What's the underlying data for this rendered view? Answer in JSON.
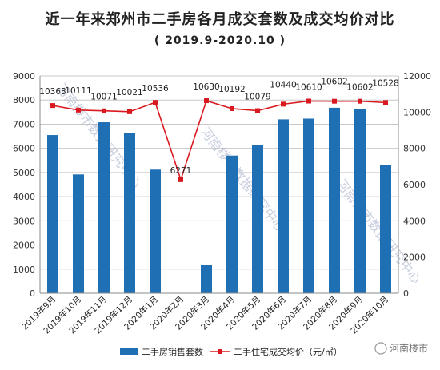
{
  "title": "近一年来郑州市二手房各月成交套数及成交均价对比",
  "subtitle": "( 2019.9-2020.10 )",
  "watermark": "河南楼市数据研究中心",
  "brand": "河南楼市",
  "colors": {
    "bar": "#1f6fb5",
    "line": "#d9191f",
    "grid": "#c8c8c8"
  },
  "chart_data": {
    "type": "bar",
    "categories": [
      "2019年9月",
      "2019年10月",
      "2019年11月",
      "2019年12月",
      "2020年1月",
      "2020年2月",
      "2020年3月",
      "2020年4月",
      "2020年5月",
      "2020年6月",
      "2020年7月",
      "2020年8月",
      "2020年9月",
      "2020年10月"
    ],
    "series": [
      {
        "name": "二手房销售套数",
        "type": "bar",
        "axis": "left",
        "values": [
          6550,
          4920,
          7080,
          6620,
          5120,
          0,
          1170,
          5700,
          6150,
          7200,
          7230,
          7680,
          7640,
          5300
        ]
      },
      {
        "name": "二手住宅成交均价（元/㎡）",
        "type": "line",
        "axis": "right",
        "values": [
          10363,
          10111,
          10071,
          10021,
          10536,
          6271,
          10630,
          10192,
          10079,
          10440,
          10610,
          10602,
          10602,
          10528
        ]
      }
    ],
    "y_left": {
      "ylim": [
        0,
        9000
      ],
      "ticks": [
        0,
        1000,
        2000,
        3000,
        4000,
        5000,
        6000,
        7000,
        8000,
        9000
      ]
    },
    "y_right": {
      "ylim": [
        0,
        12000
      ],
      "ticks": [
        0,
        2000,
        4000,
        6000,
        8000,
        10000,
        12000
      ]
    },
    "grid": true,
    "legend": "bottom"
  }
}
